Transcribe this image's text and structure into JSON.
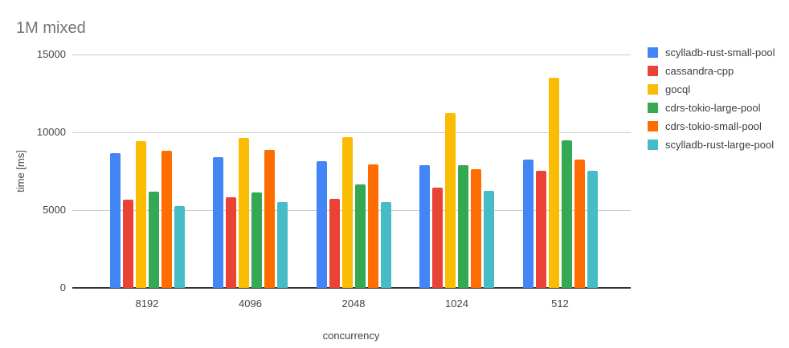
{
  "chart_data": {
    "type": "bar",
    "title": "1M mixed",
    "xlabel": "concurrency",
    "ylabel": "time [ms]",
    "categories": [
      "8192",
      "4096",
      "2048",
      "1024",
      "512"
    ],
    "series": [
      {
        "name": "scylladb-rust-small-pool",
        "color": "#4285F4",
        "values": [
          8650,
          8400,
          8160,
          7890,
          8240
        ]
      },
      {
        "name": "cassandra-cpp",
        "color": "#EA4335",
        "values": [
          5650,
          5840,
          5740,
          6440,
          7520
        ]
      },
      {
        "name": "gocql",
        "color": "#FBBC04",
        "values": [
          9450,
          9640,
          9690,
          11250,
          13480
        ]
      },
      {
        "name": "cdrs-tokio-large-pool",
        "color": "#34A853",
        "values": [
          6170,
          6150,
          6650,
          7880,
          9490
        ]
      },
      {
        "name": "cdrs-tokio-small-pool",
        "color": "#FF6D01",
        "values": [
          8810,
          8880,
          7940,
          7650,
          8240
        ]
      },
      {
        "name": "scylladb-rust-large-pool",
        "color": "#46BDC6",
        "values": [
          5270,
          5500,
          5520,
          6230,
          7500
        ]
      }
    ],
    "ylim": [
      0,
      15000
    ],
    "yticks": [
      0,
      5000,
      10000,
      15000
    ],
    "grid": true,
    "legend_position": "right",
    "axis_colors": {
      "gridline": "#cccccc",
      "baseline": "#333333",
      "tick_text": "#444444",
      "title_text": "#757575",
      "legend_text": "#3c4043"
    }
  }
}
